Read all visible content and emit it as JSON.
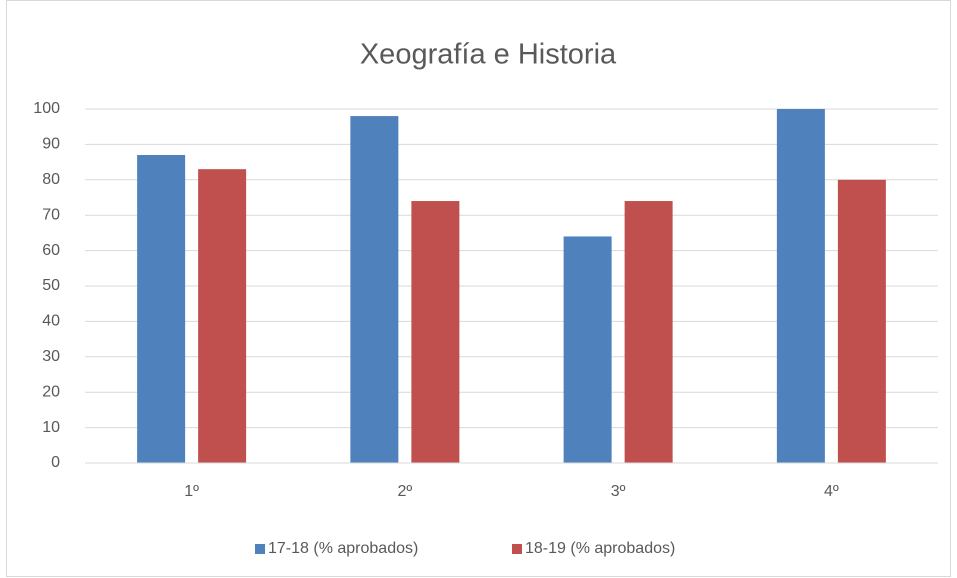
{
  "chart_data": {
    "type": "bar",
    "title": "Xeografía e Historia",
    "categories": [
      "1º",
      "2º",
      "3º",
      "4º"
    ],
    "series": [
      {
        "name": "17-18 (% aprobados)",
        "color": "#4f81bd",
        "values": [
          87,
          98,
          64,
          100
        ]
      },
      {
        "name": "18-19 (% aprobados)",
        "color": "#c0504d",
        "values": [
          83,
          74,
          74,
          80
        ]
      }
    ],
    "ylim": [
      0,
      100
    ],
    "yticks": [
      0,
      10,
      20,
      30,
      40,
      50,
      60,
      70,
      80,
      90,
      100
    ],
    "grid": true,
    "legend": "bottom"
  }
}
